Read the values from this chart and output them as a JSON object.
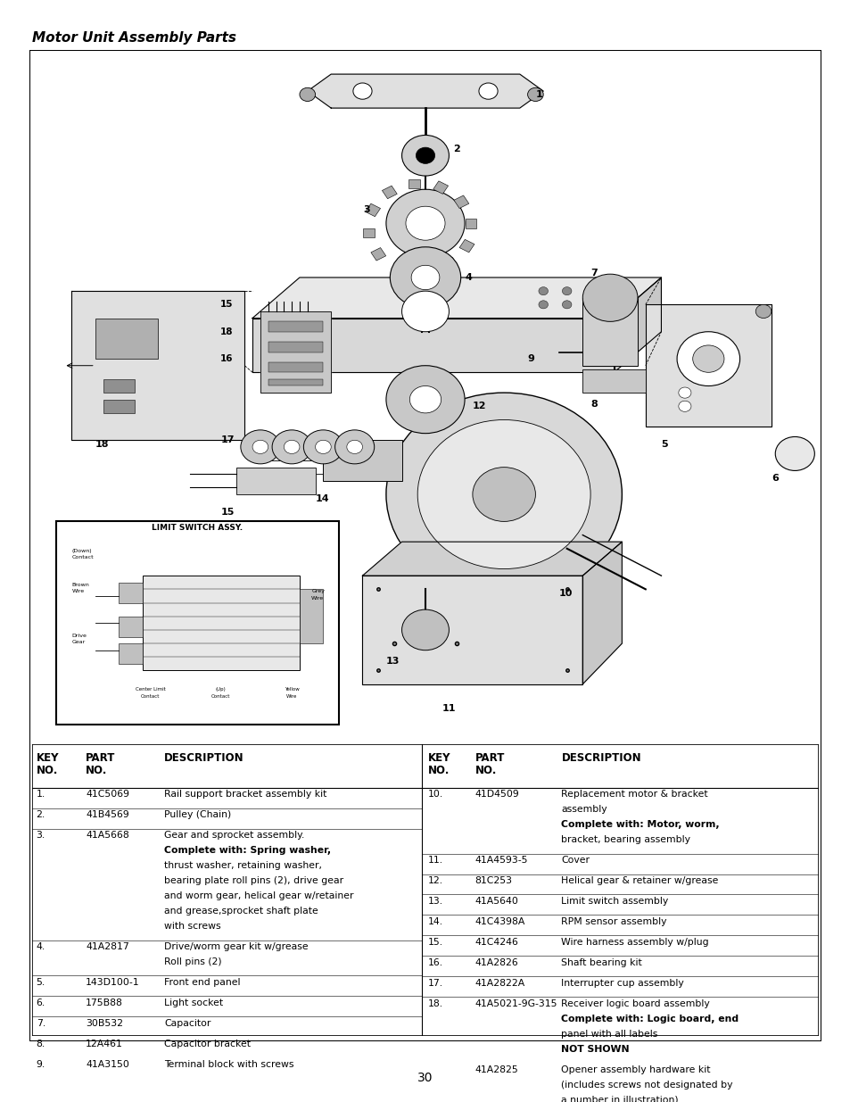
{
  "title": "Motor Unit Assembly Parts",
  "page_number": "30",
  "bg_color": "#ffffff",
  "border_color": "#000000",
  "row_data_l": [
    [
      "1.",
      "41C5069",
      [
        "Rail support bracket assembly kit"
      ],
      [
        false
      ]
    ],
    [
      "2.",
      "41B4569",
      [
        "Pulley (Chain)"
      ],
      [
        false
      ]
    ],
    [
      "3.",
      "41A5668",
      [
        "Gear and sprocket assembly.",
        "Complete with: Spring washer,",
        "thrust washer, retaining washer,",
        "bearing plate roll pins (2), drive gear",
        "and worm gear, helical gear w/retainer",
        "and grease,sprocket shaft plate",
        "with screws"
      ],
      [
        false,
        true,
        false,
        false,
        false,
        false,
        false
      ]
    ],
    [
      "4.",
      "41A2817",
      [
        "Drive/worm gear kit w/grease",
        "Roll pins (2)"
      ],
      [
        false,
        false
      ]
    ],
    [
      "5.",
      "143D100-1",
      [
        "Front end panel"
      ],
      [
        false
      ]
    ],
    [
      "6.",
      "175B88",
      [
        "Light socket"
      ],
      [
        false
      ]
    ],
    [
      "7.",
      "30B532",
      [
        "Capacitor"
      ],
      [
        false
      ]
    ],
    [
      "8.",
      "12A461",
      [
        "Capacitor bracket"
      ],
      [
        false
      ]
    ],
    [
      "9.",
      "41A3150",
      [
        "Terminal block with screws"
      ],
      [
        false
      ]
    ]
  ],
  "row_data_r": [
    [
      "10.",
      "41D4509",
      [
        "Replacement motor & bracket",
        "assembly",
        "Complete with: Motor, worm,",
        "bracket, bearing assembly"
      ],
      [
        false,
        false,
        true,
        false
      ]
    ],
    [
      "11.",
      "41A4593-5",
      [
        "Cover"
      ],
      [
        false
      ]
    ],
    [
      "12.",
      "81C253",
      [
        "Helical gear & retainer w/grease"
      ],
      [
        false
      ]
    ],
    [
      "13.",
      "41A5640",
      [
        "Limit switch assembly"
      ],
      [
        false
      ]
    ],
    [
      "14.",
      "41C4398A",
      [
        "RPM sensor assembly"
      ],
      [
        false
      ]
    ],
    [
      "15.",
      "41C4246",
      [
        "Wire harness assembly w/plug"
      ],
      [
        false
      ]
    ],
    [
      "16.",
      "41A2826",
      [
        "Shaft bearing kit"
      ],
      [
        false
      ]
    ],
    [
      "17.",
      "41A2822A",
      [
        "Interrupter cup assembly"
      ],
      [
        false
      ]
    ],
    [
      "18.",
      "41A5021-9G-315",
      [
        "Receiver logic board assembly",
        "Complete with: Logic board, end",
        "panel with all labels",
        "NOT SHOWN"
      ],
      [
        false,
        true,
        false,
        true
      ]
    ],
    [
      "",
      "41A2825",
      [
        "Opener assembly hardware kit",
        "(includes screws not designated by",
        "a number in illustration)."
      ],
      [
        false,
        false,
        false
      ]
    ]
  ],
  "limit_switch_label": "LIMIT SWITCH ASSY."
}
